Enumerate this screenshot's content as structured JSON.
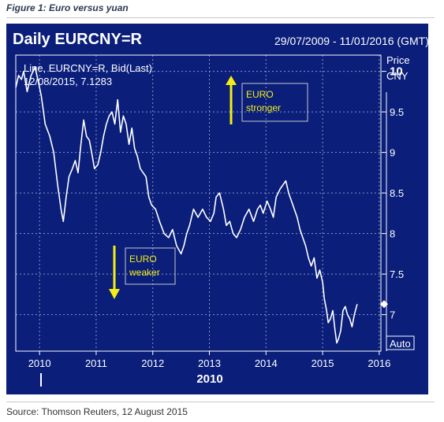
{
  "figure_title": "Figure 1: Euro versus yuan",
  "source": "Source: Thomson Reuters, 12 August 2015",
  "header": {
    "title": "Daily EURCNY=R",
    "date_range": "29/07/2009 - 11/01/2016 (GMT)"
  },
  "legend": {
    "line1": "Line, EURCNY=R, Bid(Last)",
    "line2": "12/08/2015, 7.1283"
  },
  "annotations": {
    "up": "EURO\nstronger",
    "down": "EURO\nweaker"
  },
  "auto_label": "Auto",
  "colors": {
    "panel_bg": "#0a1e7a",
    "line": "#ffffff",
    "grid": "#8d95c4",
    "arrow": "#f4ee12",
    "annotation_text": "#f4ee12"
  },
  "chart_data": {
    "type": "line",
    "ylabel": "Price CNY",
    "x_ticks": [
      "2010",
      "2011",
      "2012",
      "2013",
      "2014",
      "2015",
      "2016"
    ],
    "x_sublabel": "2010",
    "y_ticks": [
      "10",
      "9.5",
      "9",
      "8.5",
      "8",
      "7.5",
      "7"
    ],
    "ylim": [
      6.55,
      10.2
    ],
    "xlim": [
      2009.58,
      2016.03
    ],
    "current_value": 7.13,
    "grid": true,
    "series": [
      {
        "x": [
          2009.58,
          2009.63,
          2009.68,
          2009.72,
          2009.78,
          2009.85,
          2009.92,
          2009.97,
          2010.03,
          2010.1,
          2010.18,
          2010.25,
          2010.32,
          2010.38,
          2010.42,
          2010.47,
          2010.52,
          2010.58,
          2010.63,
          2010.68,
          2010.73,
          2010.78,
          2010.83,
          2010.88,
          2010.92,
          2010.97,
          2011.03,
          2011.08,
          2011.13,
          2011.18,
          2011.23,
          2011.28,
          2011.33,
          2011.38,
          2011.43,
          2011.48,
          2011.53,
          2011.58,
          2011.63,
          2011.68,
          2011.73,
          2011.78,
          2011.83,
          2011.88,
          2011.93,
          2011.98,
          2012.05,
          2012.12,
          2012.2,
          2012.28,
          2012.35,
          2012.42,
          2012.5,
          2012.55,
          2012.6,
          2012.65,
          2012.72,
          2012.8,
          2012.88,
          2012.95,
          2013.02,
          2013.08,
          2013.12,
          2013.18,
          2013.25,
          2013.3,
          2013.36,
          2013.42,
          2013.48,
          2013.55,
          2013.62,
          2013.7,
          2013.78,
          2013.85,
          2013.9,
          2013.95,
          2014.02,
          2014.08,
          2014.13,
          2014.18,
          2014.25,
          2014.3,
          2014.35,
          2014.4,
          2014.45,
          2014.5,
          2014.55,
          2014.6,
          2014.65,
          2014.7,
          2014.75,
          2014.8,
          2014.85,
          2014.9,
          2014.95,
          2015.0,
          2015.03,
          2015.07,
          2015.1,
          2015.14,
          2015.18,
          2015.22,
          2015.25,
          2015.28,
          2015.32,
          2015.36,
          2015.4,
          2015.44,
          2015.48,
          2015.52,
          2015.56,
          2015.61
        ],
        "y": [
          9.8,
          9.95,
          9.9,
          10.0,
          9.75,
          9.95,
          10.05,
          9.9,
          9.7,
          9.35,
          9.2,
          9.0,
          8.6,
          8.3,
          8.15,
          8.45,
          8.7,
          8.8,
          8.9,
          8.75,
          9.1,
          9.4,
          9.2,
          9.15,
          9.0,
          8.8,
          8.85,
          9.0,
          9.2,
          9.35,
          9.45,
          9.5,
          9.35,
          9.65,
          9.25,
          9.45,
          9.35,
          9.1,
          9.3,
          9.05,
          8.95,
          8.8,
          8.75,
          8.7,
          8.45,
          8.35,
          8.3,
          8.15,
          8.0,
          7.95,
          8.05,
          7.85,
          7.75,
          7.85,
          8.0,
          8.1,
          8.3,
          8.2,
          8.3,
          8.2,
          8.15,
          8.25,
          8.45,
          8.5,
          8.3,
          8.1,
          8.15,
          8.0,
          7.95,
          8.05,
          8.2,
          8.3,
          8.15,
          8.3,
          8.35,
          8.25,
          8.4,
          8.3,
          8.2,
          8.45,
          8.55,
          8.6,
          8.65,
          8.5,
          8.4,
          8.3,
          8.2,
          8.05,
          7.95,
          7.85,
          7.7,
          7.6,
          7.7,
          7.45,
          7.55,
          7.4,
          7.2,
          7.05,
          6.9,
          6.95,
          7.05,
          6.8,
          6.65,
          6.7,
          6.8,
          7.05,
          7.1,
          7.0,
          6.95,
          6.85,
          7.0,
          7.13
        ]
      }
    ]
  }
}
